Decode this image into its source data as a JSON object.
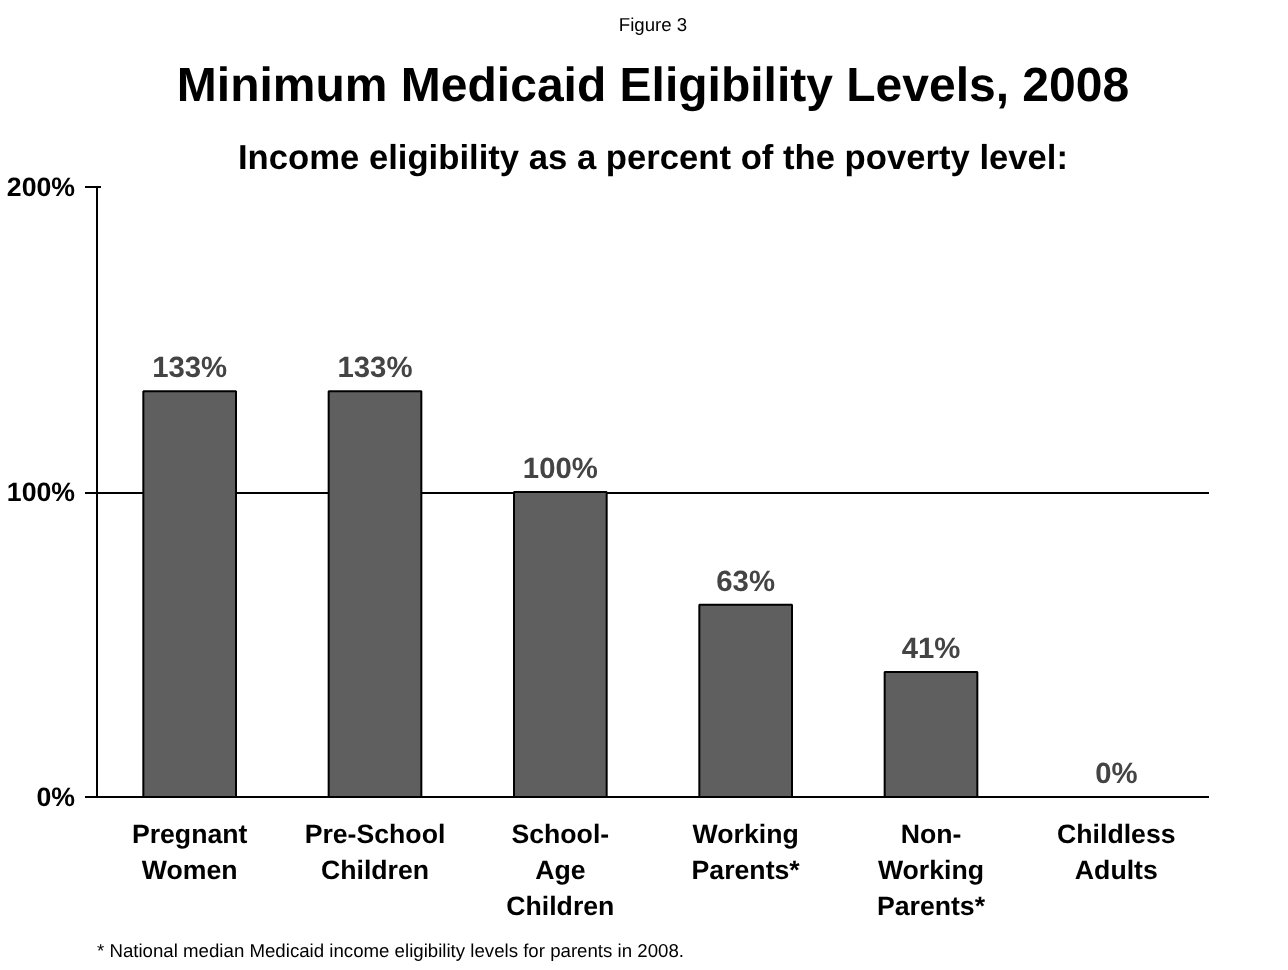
{
  "chart_data": {
    "type": "bar",
    "title": "Minimum Medicaid Eligibility Levels, 2008",
    "subtitle": "Income eligibility as a percent of the poverty level:",
    "annotations": [
      "Figure 3",
      "* National median Medicaid income eligibility levels for parents in 2008."
    ],
    "categories": [
      "Pregnant\nWomen",
      "Pre-School\nChildren",
      "School-\nAge\nChildren",
      "Working\nParents*",
      "Non-\nWorking\nParents*",
      "Childless\nAdults"
    ],
    "values": [
      133,
      133,
      100,
      63,
      41,
      0
    ],
    "color": "#5f5f5f",
    "value_labels": [
      "133%",
      "133%",
      "100%",
      "63%",
      "41%",
      "0%"
    ],
    "ylim": [
      0,
      200
    ],
    "yticks": [
      {
        "value": 0,
        "label": "0%"
      },
      {
        "value": 100,
        "label": "100%"
      },
      {
        "value": 200,
        "label": "200%"
      }
    ],
    "grid": "y"
  }
}
